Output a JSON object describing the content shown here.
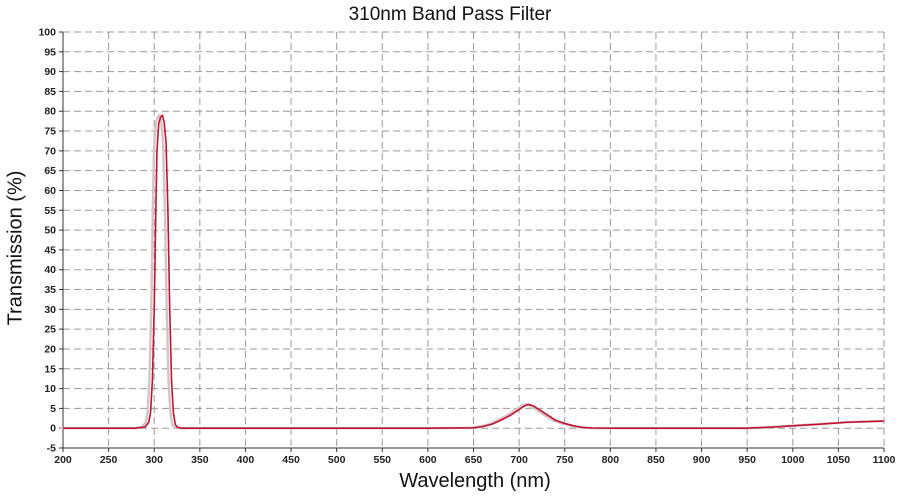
{
  "chart_data": {
    "type": "line",
    "title": "310nm Band Pass Filter",
    "xlabel": "Wavelength (nm)",
    "ylabel": "Transmission (%)",
    "xlim": [
      200,
      1100
    ],
    "ylim": [
      -5,
      100
    ],
    "x_ticks": [
      200,
      250,
      300,
      350,
      400,
      450,
      500,
      550,
      600,
      650,
      700,
      750,
      800,
      850,
      900,
      950,
      1000,
      1050,
      1100
    ],
    "y_ticks": [
      -5,
      0,
      5,
      10,
      15,
      20,
      25,
      30,
      35,
      40,
      45,
      50,
      55,
      60,
      65,
      70,
      75,
      80,
      85,
      90,
      95,
      100
    ],
    "grid": true,
    "series": [
      {
        "color": "#c8102e",
        "x": [
          200,
          280,
          290,
          294,
          296,
          298,
          300,
          302,
          303,
          305,
          307,
          309,
          311,
          313,
          315,
          317,
          319,
          321,
          323,
          325,
          330,
          400,
          600,
          650,
          660,
          670,
          680,
          690,
          700,
          705,
          710,
          715,
          720,
          730,
          740,
          750,
          760,
          770,
          780,
          800,
          900,
          950,
          980,
          1000,
          1030,
          1060,
          1100
        ],
        "y": [
          0,
          0,
          0.3,
          1.5,
          4,
          12,
          30,
          58,
          70,
          77,
          78.5,
          79,
          77,
          72,
          55,
          30,
          12,
          4,
          1,
          0.3,
          0,
          0,
          0,
          0.1,
          0.4,
          1,
          2,
          3.2,
          4.7,
          5.5,
          6,
          5.7,
          5,
          3.5,
          2,
          1.2,
          0.6,
          0.2,
          0.05,
          0,
          0,
          0,
          0.3,
          0.6,
          1,
          1.5,
          1.8
        ]
      }
    ]
  }
}
